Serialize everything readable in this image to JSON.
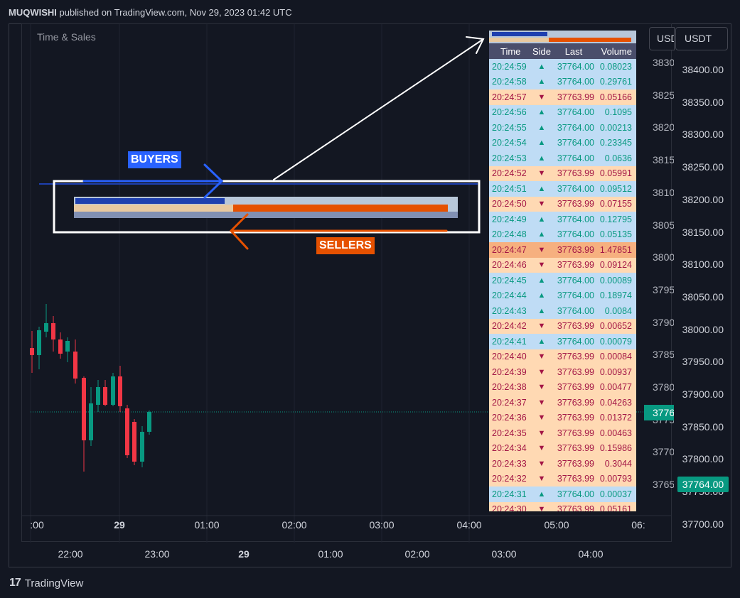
{
  "header": {
    "author": "MUQWISHI",
    "rest": " published on TradingView.com, Nov 29, 2023 01:42 UTC"
  },
  "indicator_label": "Time & Sales",
  "currency_button": "USDT",
  "currency_button_behind": "USDT",
  "price_axis_right": [
    "38400.00",
    "38350.00",
    "38300.00",
    "38250.00",
    "38200.00",
    "38150.00",
    "38100.00",
    "38050.00",
    "38000.00",
    "37950.00",
    "37900.00",
    "37850.00",
    "37800.00",
    "37750.00",
    "37700.00"
  ],
  "price_axis_behind": [
    "3830",
    "3825",
    "3820",
    "3815",
    "3810",
    "3805",
    "3800",
    "3795",
    "3790",
    "3785",
    "3780",
    "3775",
    "3770",
    "3765"
  ],
  "last_price_badge": "37764.00",
  "last_price_badge_behind": "3776",
  "time_axis_inner": [
    {
      "label": ":00",
      "bold": false
    },
    {
      "label": "29",
      "bold": true
    },
    {
      "label": "01:00",
      "bold": false
    },
    {
      "label": "02:00",
      "bold": false
    },
    {
      "label": "03:00",
      "bold": false
    },
    {
      "label": "04:00",
      "bold": false
    },
    {
      "label": "05:00",
      "bold": false
    },
    {
      "label": "06:",
      "bold": false
    }
  ],
  "time_axis_outer": [
    {
      "label": "22:00",
      "bold": false
    },
    {
      "label": "23:00",
      "bold": false
    },
    {
      "label": "29",
      "bold": true
    },
    {
      "label": "01:00",
      "bold": false
    },
    {
      "label": "02:00",
      "bold": false
    },
    {
      "label": "03:00",
      "bold": false
    },
    {
      "label": "04:00",
      "bold": false
    }
  ],
  "table": {
    "headers": {
      "time": "Time",
      "side": "Side",
      "last": "Last",
      "volume": "Volume"
    },
    "rows": [
      {
        "time": "20:24:59",
        "side": "buy",
        "last": "37764.00",
        "volume": "0.08023"
      },
      {
        "time": "20:24:58",
        "side": "buy",
        "last": "37764.00",
        "volume": "0.29761"
      },
      {
        "time": "20:24:57",
        "side": "sell",
        "last": "37763.99",
        "volume": "0.05166"
      },
      {
        "time": "20:24:56",
        "side": "buy",
        "last": "37764.00",
        "volume": "0.1095"
      },
      {
        "time": "20:24:55",
        "side": "buy",
        "last": "37764.00",
        "volume": "0.00213"
      },
      {
        "time": "20:24:54",
        "side": "buy",
        "last": "37764.00",
        "volume": "0.23345"
      },
      {
        "time": "20:24:53",
        "side": "buy",
        "last": "37764.00",
        "volume": "0.0636"
      },
      {
        "time": "20:24:52",
        "side": "sell",
        "last": "37763.99",
        "volume": "0.05991"
      },
      {
        "time": "20:24:51",
        "side": "buy",
        "last": "37764.00",
        "volume": "0.09512"
      },
      {
        "time": "20:24:50",
        "side": "sell",
        "last": "37763.99",
        "volume": "0.07155"
      },
      {
        "time": "20:24:49",
        "side": "buy",
        "last": "37764.00",
        "volume": "0.12795"
      },
      {
        "time": "20:24:48",
        "side": "buy",
        "last": "37764.00",
        "volume": "0.05135"
      },
      {
        "time": "20:24:47",
        "side": "sell",
        "last": "37763.99",
        "volume": "1.47851",
        "big": true
      },
      {
        "time": "20:24:46",
        "side": "sell",
        "last": "37763.99",
        "volume": "0.09124"
      },
      {
        "time": "20:24:45",
        "side": "buy",
        "last": "37764.00",
        "volume": "0.00089"
      },
      {
        "time": "20:24:44",
        "side": "buy",
        "last": "37764.00",
        "volume": "0.18974"
      },
      {
        "time": "20:24:43",
        "side": "buy",
        "last": "37764.00",
        "volume": "0.0084"
      },
      {
        "time": "20:24:42",
        "side": "sell",
        "last": "37763.99",
        "volume": "0.00652"
      },
      {
        "time": "20:24:41",
        "side": "buy",
        "last": "37764.00",
        "volume": "0.00079"
      },
      {
        "time": "20:24:40",
        "side": "sell",
        "last": "37763.99",
        "volume": "0.00084"
      },
      {
        "time": "20:24:39",
        "side": "sell",
        "last": "37763.99",
        "volume": "0.00937"
      },
      {
        "time": "20:24:38",
        "side": "sell",
        "last": "37763.99",
        "volume": "0.00477"
      },
      {
        "time": "20:24:37",
        "side": "sell",
        "last": "37763.99",
        "volume": "0.04263"
      },
      {
        "time": "20:24:36",
        "side": "sell",
        "last": "37763.99",
        "volume": "0.01372"
      },
      {
        "time": "20:24:35",
        "side": "sell",
        "last": "37763.99",
        "volume": "0.00463"
      },
      {
        "time": "20:24:34",
        "side": "sell",
        "last": "37763.99",
        "volume": "0.15986"
      },
      {
        "time": "20:24:33",
        "side": "sell",
        "last": "37763.99",
        "volume": "0.3044"
      },
      {
        "time": "20:24:32",
        "side": "sell",
        "last": "37763.99",
        "volume": "0.00793"
      },
      {
        "time": "20:24:31",
        "side": "buy",
        "last": "37764.00",
        "volume": "0.00037"
      },
      {
        "time": "20:24:30",
        "side": "sell",
        "last": "37763.99",
        "volume": "0.05161"
      }
    ]
  },
  "side_icons": {
    "buy": "▲",
    "sell": "▼"
  },
  "buyers_label": "BUYERS",
  "sellers_label": "SELLERS",
  "colors": {
    "buy": "#089981",
    "sell": "#f23645",
    "accent_blue": "#2962ff",
    "accent_orange": "#e65100"
  },
  "footer": {
    "brand": "TradingView",
    "logo_glyph": "17"
  }
}
